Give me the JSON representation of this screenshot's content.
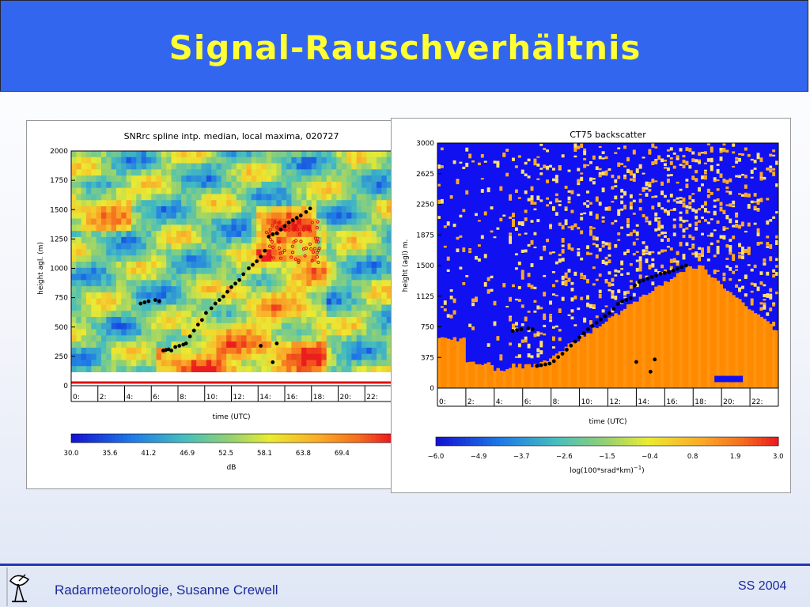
{
  "slide": {
    "title": "Signal-Rauschverhältnis",
    "footer_left": "Radarmeteorologie, Susanne Crewell",
    "footer_right": "SS 2004"
  },
  "chart_data": [
    {
      "type": "heatmap",
      "title": "SNRrc spline intp. median, local maxima, 020727",
      "xlabel": "time (UTC)",
      "ylabel": "height agl. (m)",
      "xticks": [
        "0:",
        "2:",
        "4:",
        "6:",
        "8:",
        "10:",
        "12:",
        "14:",
        "16:",
        "18:",
        "20:",
        "22:"
      ],
      "yticks": [
        "0",
        "250",
        "500",
        "750",
        "1000",
        "1250",
        "1500",
        "1750",
        "2000"
      ],
      "xlim": [
        0,
        24
      ],
      "ylim": [
        0,
        2000
      ],
      "colorbar": {
        "label": "dB",
        "ticks": [
          "30.0",
          "35.6",
          "41.2",
          "46.9",
          "52.5",
          "58.1",
          "63.8",
          "69.4"
        ],
        "range": [
          30.0,
          75.0
        ]
      },
      "colors": {
        "low": "#1010cc",
        "mid": "#e8e830",
        "high": "#ee2222"
      },
      "series": [
        {
          "marker": "black-dot",
          "x": [
            5.2,
            5.5,
            5.8,
            6.3,
            6.6,
            6.9,
            7.1,
            7.3,
            7.5,
            7.8,
            8.1,
            8.4,
            8.6,
            8.9,
            9.2,
            9.5,
            9.8,
            10.1,
            10.5,
            10.8,
            11.1,
            11.4,
            11.7,
            12.0,
            12.3,
            12.6,
            12.9,
            13.3,
            13.6,
            13.9,
            14.2,
            14.5,
            14.8,
            15.1,
            15.4,
            15.7,
            16.0,
            16.3,
            16.6,
            16.9,
            17.2,
            17.6,
            17.9,
            14.2,
            15.1,
            15.4
          ],
          "y": [
            700,
            710,
            720,
            730,
            720,
            300,
            305,
            310,
            300,
            330,
            340,
            350,
            360,
            420,
            470,
            520,
            560,
            620,
            660,
            700,
            730,
            760,
            800,
            840,
            870,
            900,
            950,
            1000,
            1030,
            1060,
            1100,
            1150,
            1270,
            1290,
            1300,
            1330,
            1360,
            1390,
            1410,
            1430,
            1450,
            1480,
            1510,
            340,
            200,
            360
          ]
        },
        {
          "marker": "red-open-circle",
          "description_range": "scattered local maxima 14.5–18.5 h, 1050–1400 m"
        }
      ]
    },
    {
      "type": "heatmap",
      "title": "CT75 backscatter",
      "xlabel": "time (UTC)",
      "ylabel": "height (agl) m.",
      "xticks": [
        "0:",
        "2:",
        "4:",
        "6:",
        "8:",
        "10:",
        "12:",
        "14:",
        "16:",
        "18:",
        "20:",
        "22:"
      ],
      "yticks": [
        "0",
        "375",
        "750",
        "1125",
        "1500",
        "1875",
        "2250",
        "2625",
        "3000"
      ],
      "xlim": [
        0,
        24
      ],
      "ylim": [
        0,
        3000
      ],
      "colorbar": {
        "label": "log(100*srad*km)",
        "label_sup": "−1",
        "ticks": [
          "−6.0",
          "−4.9",
          "−3.7",
          "−2.6",
          "−1.5",
          "−0.4",
          "0.8",
          "1.9",
          "3.0"
        ],
        "range": [
          -6.0,
          3.0
        ]
      },
      "colors": {
        "background": "#1010f0",
        "boundary_layer": "#ff8800",
        "noise": "#ff9933"
      },
      "series": [
        {
          "marker": "black-dot",
          "x": [
            5.3,
            5.6,
            5.9,
            6.4,
            6.7,
            7.0,
            7.3,
            7.6,
            7.9,
            8.2,
            8.5,
            8.8,
            9.1,
            9.4,
            9.7,
            10.0,
            10.3,
            10.6,
            10.9,
            11.2,
            11.5,
            11.8,
            12.1,
            12.4,
            12.7,
            13.0,
            13.3,
            13.6,
            13.9,
            14.2,
            14.5,
            14.8,
            15.1,
            15.4,
            15.7,
            16.0,
            16.3,
            16.6,
            16.9,
            17.2,
            17.5,
            14.0,
            15.0,
            15.3
          ],
          "y": [
            700,
            710,
            720,
            730,
            720,
            270,
            280,
            290,
            300,
            330,
            380,
            420,
            470,
            520,
            570,
            620,
            670,
            720,
            760,
            800,
            840,
            880,
            920,
            970,
            1030,
            1060,
            1080,
            1100,
            1260,
            1300,
            1320,
            1340,
            1360,
            1380,
            1400,
            1410,
            1420,
            1440,
            1460,
            1480,
            1500,
            320,
            200,
            350
          ]
        }
      ]
    }
  ]
}
